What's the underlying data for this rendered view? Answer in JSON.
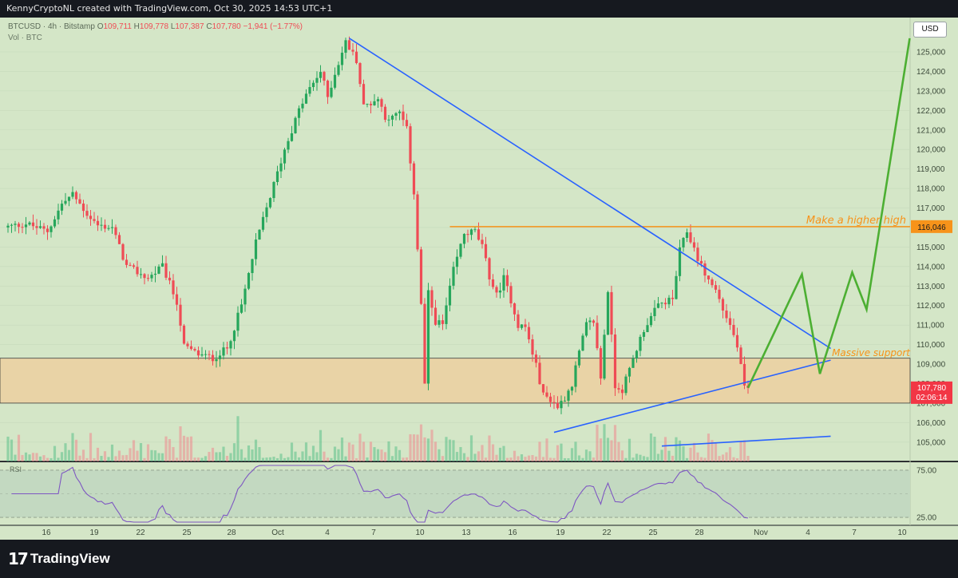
{
  "header": {
    "credit": "KennyCryptoNL created with TradingView.com, Oct 30, 2025 14:53 UTC+1"
  },
  "symbol_bar": {
    "symbol": "BTCUSD · 4h · Bitstamp",
    "o_label": "O",
    "o": "109,711",
    "h_label": "H",
    "h": "109,778",
    "l_label": "L",
    "l": "107,387",
    "c_label": "C",
    "c": "107,780",
    "change": "−1,941 (−1.77%)",
    "vol": "Vol · BTC"
  },
  "currency_button": "USD",
  "annotations": {
    "higher_high": "Make a higher high",
    "support": "Massive support"
  },
  "price_tags": {
    "resistance": "116,046",
    "last_price": "107,780",
    "countdown": "02:06:14"
  },
  "rsi": {
    "label": "RSI",
    "upper": "75.00",
    "lower": "25.00"
  },
  "footer": {
    "brand": "TradingView"
  },
  "colors": {
    "background": "#d4e6c7",
    "up_candle": "#26a65b",
    "down_candle": "#ef4b55",
    "trendline": "#2962ff",
    "resistance": "#f7931a",
    "projection": "#4caf32",
    "support_zone": "#e9d3a6",
    "rsi_line": "#7e57c2"
  },
  "chart_data": {
    "type": "candlestick",
    "timeframe": "4h",
    "y_ticks": [
      105000,
      106000,
      107000,
      108000,
      109000,
      110000,
      111000,
      112000,
      113000,
      114000,
      115000,
      116000,
      117000,
      118000,
      119000,
      120000,
      121000,
      122000,
      123000,
      124000,
      125000
    ],
    "x_ticks": [
      "16",
      "19",
      "22",
      "25",
      "28",
      "Oct",
      "4",
      "7",
      "10",
      "13",
      "16",
      "19",
      "22",
      "25",
      "28",
      "Nov",
      "4",
      "7",
      "10"
    ],
    "anchors": [
      [
        0,
        116000
      ],
      [
        6,
        116200
      ],
      [
        12,
        115800
      ],
      [
        16,
        117200
      ],
      [
        19,
        117700
      ],
      [
        23,
        116700
      ],
      [
        26,
        116100
      ],
      [
        30,
        116000
      ],
      [
        34,
        114000
      ],
      [
        40,
        113400
      ],
      [
        44,
        114000
      ],
      [
        48,
        112200
      ],
      [
        50,
        109900
      ],
      [
        54,
        109500
      ],
      [
        58,
        109300
      ],
      [
        62,
        109800
      ],
      [
        66,
        112000
      ],
      [
        70,
        115200
      ],
      [
        74,
        117600
      ],
      [
        78,
        120000
      ],
      [
        82,
        122000
      ],
      [
        84,
        122800
      ],
      [
        88,
        124000
      ],
      [
        90,
        122700
      ],
      [
        92,
        123900
      ],
      [
        95,
        125500
      ],
      [
        98,
        124600
      ],
      [
        100,
        122200
      ],
      [
        104,
        122600
      ],
      [
        106,
        121700
      ],
      [
        108,
        121600
      ],
      [
        110,
        121900
      ],
      [
        112,
        121000
      ],
      [
        114,
        117800
      ],
      [
        116,
        112000
      ],
      [
        117,
        108000
      ],
      [
        118,
        112600
      ],
      [
        120,
        111200
      ],
      [
        122,
        111000
      ],
      [
        125,
        113800
      ],
      [
        128,
        115700
      ],
      [
        131,
        115800
      ],
      [
        133,
        115000
      ],
      [
        135,
        113500
      ],
      [
        137,
        112500
      ],
      [
        139,
        113400
      ],
      [
        141,
        112300
      ],
      [
        143,
        111000
      ],
      [
        145,
        110900
      ],
      [
        148,
        108900
      ],
      [
        150,
        107400
      ],
      [
        152,
        107200
      ],
      [
        154,
        106800
      ],
      [
        156,
        107300
      ],
      [
        158,
        108000
      ],
      [
        160,
        109600
      ],
      [
        162,
        111000
      ],
      [
        164,
        111200
      ],
      [
        166,
        108300
      ],
      [
        168,
        112800
      ],
      [
        170,
        107900
      ],
      [
        172,
        107700
      ],
      [
        174,
        108700
      ],
      [
        176,
        109800
      ],
      [
        178,
        110800
      ],
      [
        180,
        111400
      ],
      [
        182,
        112000
      ],
      [
        184,
        112200
      ],
      [
        186,
        112300
      ],
      [
        188,
        114800
      ],
      [
        190,
        115800
      ],
      [
        192,
        114900
      ],
      [
        194,
        114000
      ],
      [
        196,
        113300
      ],
      [
        198,
        112800
      ],
      [
        200,
        111800
      ],
      [
        202,
        111000
      ],
      [
        204,
        109900
      ],
      [
        206,
        107780
      ]
    ],
    "candles_count": 207,
    "resistance_level": 116046,
    "trendlines": [
      {
        "name": "descending resistance",
        "from": [
          95,
          125700
        ],
        "to": [
          229,
          109800
        ]
      },
      {
        "name": "ascending support",
        "from": [
          152,
          105500
        ],
        "to": [
          229,
          109200
        ]
      },
      {
        "name": "lower parallel",
        "from": [
          182,
          104800
        ],
        "to": [
          229,
          105300
        ]
      }
    ],
    "support_zone": [
      107000,
      109300
    ],
    "projection_path": [
      [
        206,
        107780
      ],
      [
        221,
        113600
      ],
      [
        226,
        108500
      ],
      [
        235,
        113700
      ],
      [
        239,
        111800
      ],
      [
        251,
        125700
      ]
    ],
    "rsi_range": [
      20,
      80
    ]
  }
}
